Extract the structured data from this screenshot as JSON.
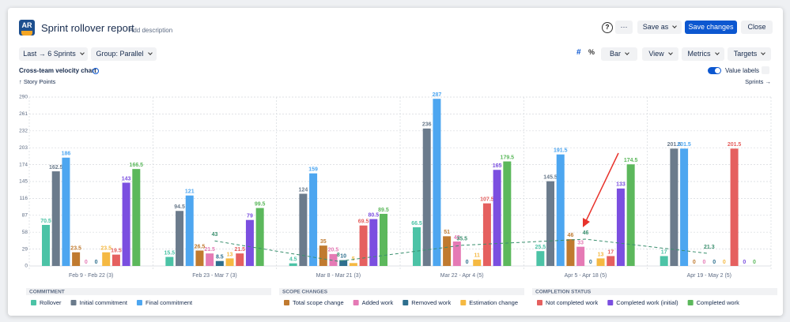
{
  "header": {
    "logo": "AR",
    "title": "Sprint rollover report",
    "add_description": "Add description",
    "help": "?",
    "more": "···",
    "save_as": "Save as",
    "save_changes": "Save changes",
    "close": "Close"
  },
  "toolbar": {
    "range": "Last → 6 Sprints",
    "group": "Group: Parallel",
    "number": "#",
    "percent": "%",
    "chart_type": "Bar",
    "view": "View",
    "metrics": "Metrics",
    "targets": "Targets",
    "value_labels": "Value labels"
  },
  "chart_data": {
    "type": "bar",
    "title": "Cross-team velocity chart",
    "y_label": "↑ Story Points",
    "x_label": "Sprints →",
    "categories": [
      "Feb 9 - Feb 22 (3)",
      "Feb 23 - Mar 7 (3)",
      "Mar 8 - Mar 21 (3)",
      "Mar 22 - Apr 4 (5)",
      "Apr 5 - Apr 18 (5)",
      "Apr 19 - May 2 (5)"
    ],
    "series": [
      {
        "name": "Rollover",
        "color": "#4cc3a6",
        "values": [
          70.5,
          15.5,
          4.5,
          66.5,
          25.5,
          17
        ]
      },
      {
        "name": "Initial commitment",
        "color": "#6b7b8c",
        "values": [
          162.5,
          94.5,
          124,
          236,
          145.5,
          201.5
        ]
      },
      {
        "name": "Final commitment",
        "color": "#4da6f0",
        "values": [
          186,
          121,
          159,
          287,
          191.5,
          201.5
        ]
      },
      {
        "name": "Total scope change",
        "color": "#c07a2f",
        "values": [
          23.5,
          26.5,
          35,
          51,
          46,
          0
        ]
      },
      {
        "name": "Added work",
        "color": "#e57ab5",
        "values": [
          0,
          21.5,
          20.5,
          42,
          33,
          0
        ]
      },
      {
        "name": "Removed work",
        "color": "#2e6f8e",
        "values": [
          0,
          8.5,
          10,
          0,
          0,
          0
        ]
      },
      {
        "name": "Estimation change",
        "color": "#f5b942",
        "values": [
          23.5,
          13,
          5,
          11,
          13,
          0
        ]
      },
      {
        "name": "Not completed work",
        "color": "#e5605f",
        "values": [
          19.5,
          21.5,
          69.5,
          107.5,
          17,
          201.5
        ]
      },
      {
        "name": "Completed work (initial)",
        "color": "#7b4fe0",
        "values": [
          143,
          79,
          80.5,
          165,
          133,
          0
        ]
      },
      {
        "name": "Completed work",
        "color": "#5cb85c",
        "values": [
          166.5,
          99.5,
          89.5,
          179.5,
          174.5,
          0
        ]
      }
    ],
    "trend": {
      "color": "#3a8f6e",
      "values": [
        null,
        43,
        8,
        35.5,
        46,
        21.3
      ]
    },
    "ylim": [
      0,
      290
    ],
    "yticks": [
      0,
      29,
      58,
      87,
      116,
      145,
      174,
      203,
      232,
      261,
      290
    ],
    "grid": true,
    "legend_groups": [
      {
        "title": "COMMITMENT",
        "series": [
          0,
          1,
          2
        ]
      },
      {
        "title": "SCOPE CHANGES",
        "series": [
          3,
          4,
          5,
          6
        ]
      },
      {
        "title": "COMPLETION STATUS",
        "series": [
          7,
          8,
          9
        ]
      }
    ]
  }
}
